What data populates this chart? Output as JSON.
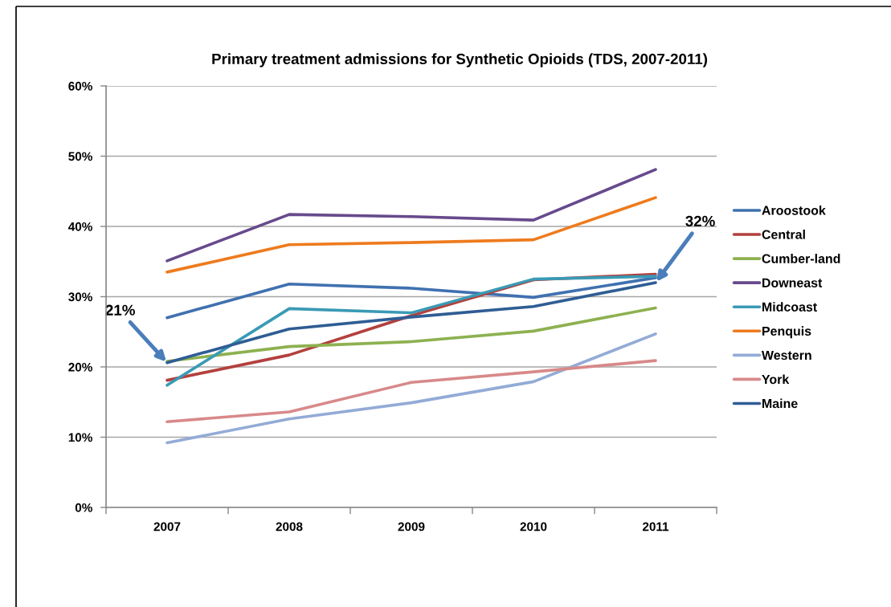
{
  "chart_data": {
    "type": "line",
    "title": "Primary treatment admissions for Synthetic Opioids (TDS, 2007-2011)",
    "categories": [
      "2007",
      "2008",
      "2009",
      "2010",
      "2011"
    ],
    "series": [
      {
        "name": "Aroostook",
        "color": "#4071b0",
        "values": [
          27.0,
          31.8,
          31.2,
          29.9,
          32.7
        ]
      },
      {
        "name": "Central",
        "color": "#b3403d",
        "values": [
          18.1,
          21.7,
          27.3,
          32.4,
          33.2
        ]
      },
      {
        "name": "Cumber-land",
        "color": "#8db150",
        "values": [
          20.8,
          22.9,
          23.6,
          25.1,
          28.4
        ]
      },
      {
        "name": "Downeast",
        "color": "#674a8c",
        "values": [
          35.1,
          41.7,
          41.4,
          40.9,
          48.1
        ]
      },
      {
        "name": "Midcoast",
        "color": "#3a9ab5",
        "values": [
          17.4,
          28.3,
          27.7,
          32.5,
          32.9
        ]
      },
      {
        "name": "Penquis",
        "color": "#ee7b1e",
        "values": [
          33.5,
          37.4,
          37.7,
          38.1,
          44.1
        ]
      },
      {
        "name": "Western",
        "color": "#93abd6",
        "values": [
          9.2,
          12.6,
          14.9,
          17.9,
          24.7
        ]
      },
      {
        "name": "York",
        "color": "#d8898a",
        "values": [
          12.2,
          13.6,
          17.8,
          19.3,
          20.9
        ]
      },
      {
        "name": "Maine",
        "color": "#2f5d94",
        "values": [
          20.6,
          25.4,
          27.1,
          28.6,
          32.0
        ]
      }
    ],
    "ylim": [
      0,
      60
    ],
    "yticks": [
      {
        "value": 0,
        "label": "0%"
      },
      {
        "value": 10,
        "label": "10%"
      },
      {
        "value": 20,
        "label": "20%"
      },
      {
        "value": 30,
        "label": "30%"
      },
      {
        "value": 40,
        "label": "40%"
      },
      {
        "value": 50,
        "label": "50%"
      },
      {
        "value": 60,
        "label": "60%"
      }
    ],
    "grid": "y",
    "legend": "right",
    "line_style": "solid",
    "annotations": [
      {
        "text": "21%",
        "x": "2007",
        "y": 20.6
      },
      {
        "text": "32%",
        "x": "2011",
        "y": 32.0
      }
    ]
  }
}
